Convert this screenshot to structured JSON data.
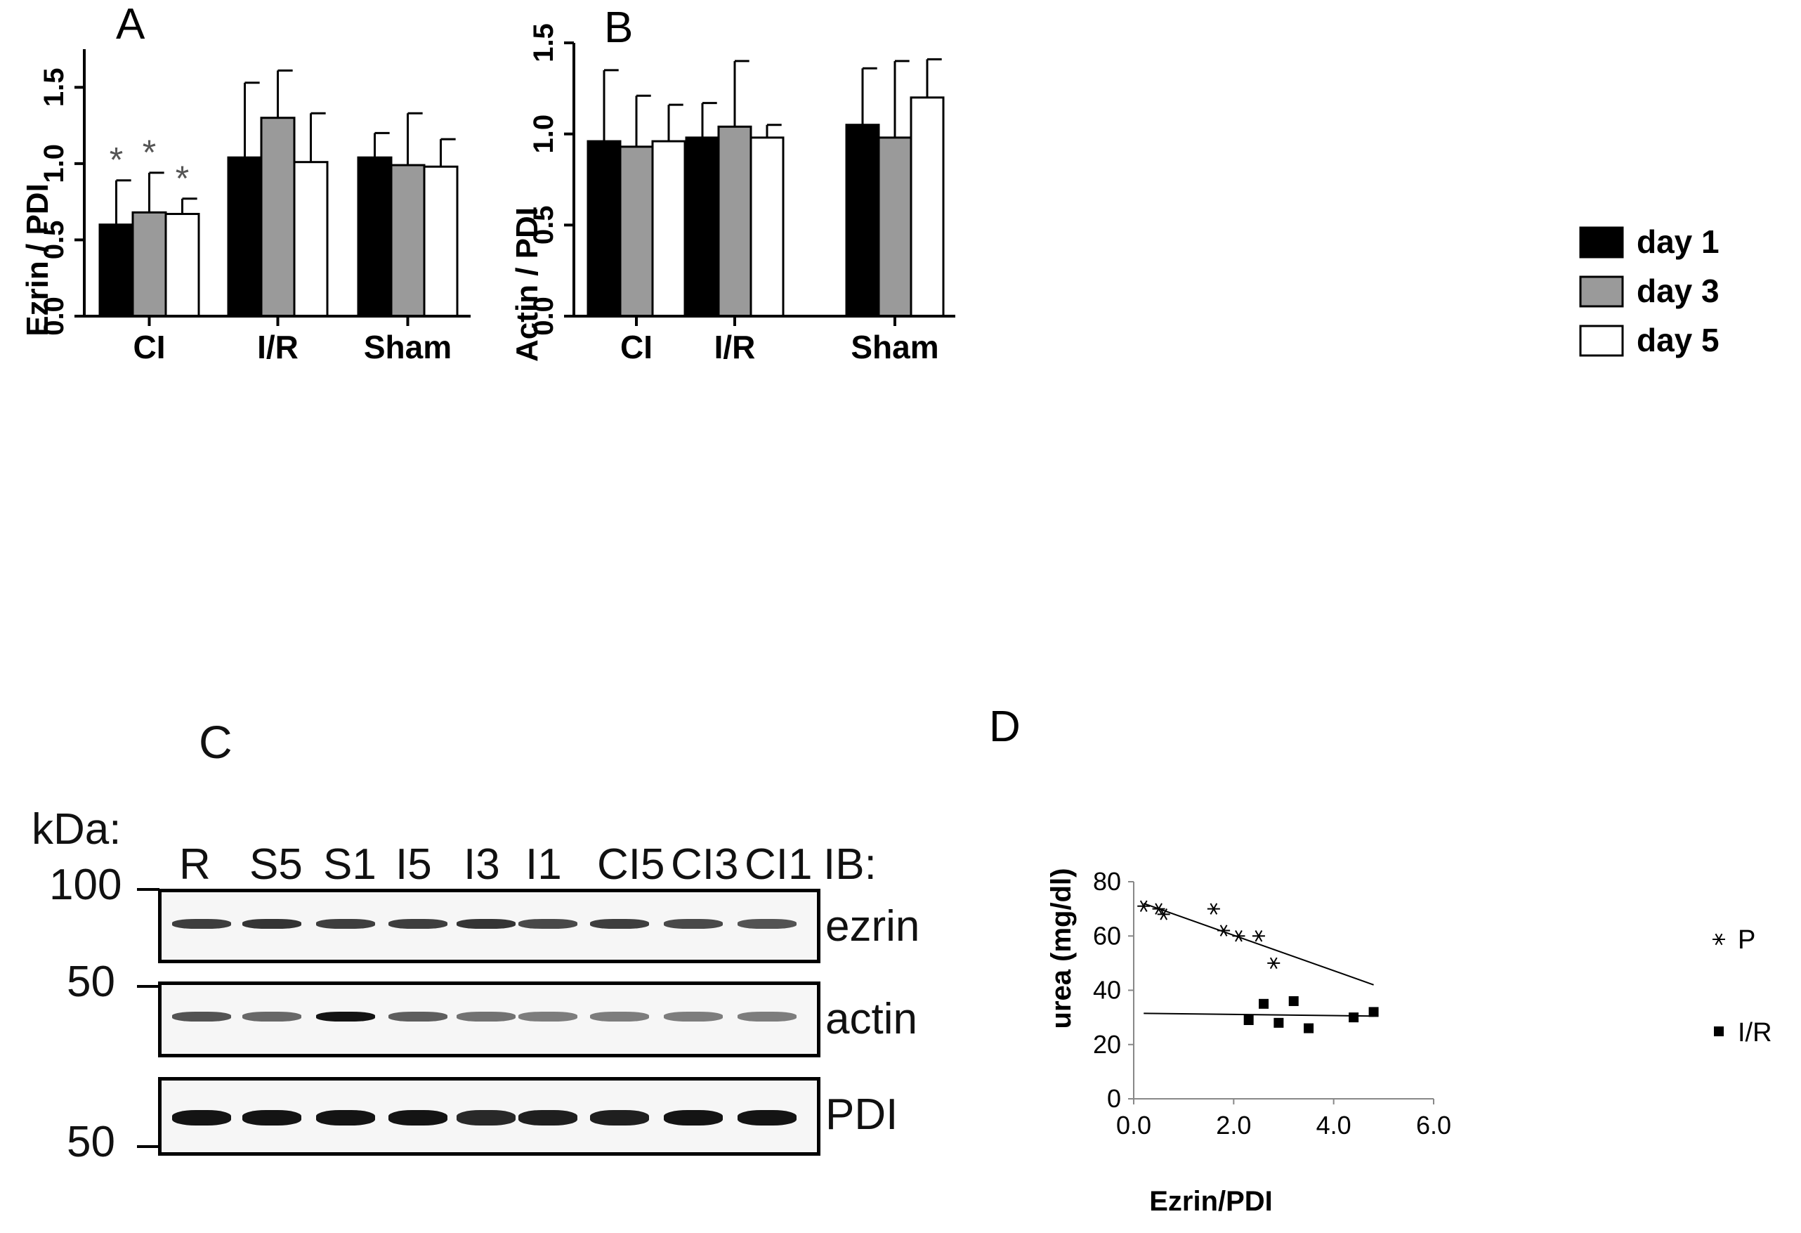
{
  "colors": {
    "day1": "#000000",
    "day3": "#9a9a9a",
    "day5": "#ffffff",
    "stroke": "#000000"
  },
  "legend": {
    "items": [
      "day 1",
      "day 3",
      "day 5"
    ]
  },
  "chart_data": [
    {
      "panel": "A",
      "type": "bar",
      "title": "A",
      "ylabel": "Ezrin / PDI",
      "ylim": [
        0,
        1.75
      ],
      "yticks": [
        "0.0",
        "0.5",
        "1.0",
        "1.5"
      ],
      "categories": [
        "CI",
        "I/R",
        "Sham"
      ],
      "series": [
        {
          "name": "day 1",
          "values": [
            0.6,
            1.04,
            1.04
          ],
          "errors": [
            0.29,
            0.49,
            0.16
          ]
        },
        {
          "name": "day 3",
          "values": [
            0.68,
            1.3,
            0.99
          ],
          "errors": [
            0.26,
            0.31,
            0.34
          ]
        },
        {
          "name": "day 5",
          "values": [
            0.67,
            1.01,
            0.98
          ],
          "errors": [
            0.1,
            0.32,
            0.18
          ]
        }
      ],
      "annotations": [
        {
          "category": "CI",
          "series": "day 1",
          "text": "*"
        },
        {
          "category": "CI",
          "series": "day 3",
          "text": "*"
        },
        {
          "category": "CI",
          "series": "day 5",
          "text": "*"
        }
      ]
    },
    {
      "panel": "B",
      "type": "bar",
      "title": "B",
      "ylabel": "Actin / PDI",
      "ylim": [
        0,
        1.5
      ],
      "yticks": [
        "0.0",
        "0.5",
        "1.0",
        "1.5"
      ],
      "categories": [
        "CI",
        "I/R",
        "Sham"
      ],
      "series": [
        {
          "name": "day 1",
          "values": [
            0.96,
            0.98,
            1.05
          ],
          "errors": [
            0.39,
            0.19,
            0.31
          ]
        },
        {
          "name": "day 3",
          "values": [
            0.93,
            1.04,
            0.98
          ],
          "errors": [
            0.28,
            0.36,
            0.42
          ]
        },
        {
          "name": "day 5",
          "values": [
            0.96,
            0.98,
            1.2
          ],
          "errors": [
            0.2,
            0.07,
            0.21
          ]
        }
      ]
    },
    {
      "panel": "D",
      "type": "scatter",
      "title": "D",
      "xlabel": "Ezrin/PDI",
      "ylabel": "urea (mg/dl)",
      "xlim": [
        0,
        6
      ],
      "ylim": [
        0,
        80
      ],
      "xticks": [
        "0.0",
        "2.0",
        "4.0",
        "6.0"
      ],
      "yticks": [
        "0",
        "20",
        "40",
        "60",
        "80"
      ],
      "series": [
        {
          "name": "P",
          "marker": "asterisk",
          "x": [
            0.2,
            0.5,
            0.6,
            1.6,
            1.8,
            2.1,
            2.5,
            2.8
          ],
          "y": [
            71,
            70,
            68,
            70,
            62,
            60,
            60,
            50
          ],
          "trend": {
            "x": [
              0.2,
              4.8
            ],
            "y": [
              72,
              42
            ]
          }
        },
        {
          "name": "I/R",
          "marker": "square",
          "x": [
            2.3,
            2.6,
            2.9,
            3.2,
            3.5,
            4.4,
            4.8
          ],
          "y": [
            29,
            35,
            28,
            36,
            26,
            30,
            32
          ],
          "trend": {
            "x": [
              0.2,
              4.8
            ],
            "y": [
              31.5,
              30.5
            ]
          }
        }
      ]
    }
  ],
  "blot": {
    "title": "C",
    "kda_label": "kDa:",
    "ib_label": "IB:",
    "lanes": [
      "R",
      "S5",
      "S1",
      "I5",
      "I3",
      "I1",
      "CI5",
      "CI3",
      "CI1"
    ],
    "rows": [
      {
        "name": "ezrin",
        "marker": "100",
        "intensity": [
          0.8,
          0.85,
          0.8,
          0.8,
          0.85,
          0.75,
          0.8,
          0.75,
          0.7
        ]
      },
      {
        "name": "actin",
        "marker": "50",
        "intensity": [
          0.7,
          0.6,
          1.0,
          0.65,
          0.55,
          0.5,
          0.5,
          0.5,
          0.5
        ]
      },
      {
        "name": "PDI",
        "marker": "50",
        "intensity": [
          1.0,
          1.0,
          1.0,
          1.0,
          0.9,
          0.95,
          0.95,
          1.0,
          1.0
        ]
      }
    ]
  }
}
